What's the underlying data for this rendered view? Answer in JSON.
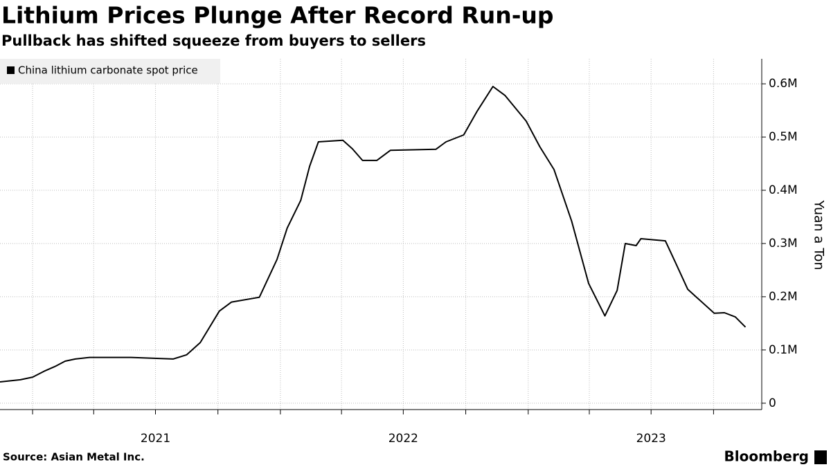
{
  "chart_data": {
    "type": "line",
    "title": "Lithium Prices Plunge After Record Run-up",
    "subtitle": "Pullback has shifted squeeze from buyers to sellers",
    "y_axis_label": "Yuan a Ton",
    "source": "Source: Asian Metal Inc.",
    "brand": "Bloomberg",
    "legend_position": "top-left",
    "grid": true,
    "x": [
      "2020-11-14",
      "2020-12-14",
      "2021-01-01",
      "2021-01-18",
      "2021-02-03",
      "2021-02-18",
      "2021-03-05",
      "2021-03-26",
      "2021-05-26",
      "2021-07-27",
      "2021-08-16",
      "2021-09-05",
      "2021-10-03",
      "2021-10-21",
      "2021-12-01",
      "2021-12-27",
      "2022-01-11",
      "2022-01-31",
      "2022-02-13",
      "2022-02-26",
      "2022-04-03",
      "2022-04-17",
      "2022-05-02",
      "2022-05-23",
      "2022-06-12",
      "2022-08-18",
      "2022-09-02",
      "2022-09-28",
      "2022-10-18",
      "2022-11-10",
      "2022-11-28",
      "2022-12-29",
      "2023-01-18",
      "2023-02-08",
      "2023-03-06",
      "2023-03-31",
      "2023-04-24",
      "2023-05-12",
      "2023-05-24",
      "2023-06-09",
      "2023-06-16",
      "2023-07-22",
      "2023-08-06",
      "2023-08-24",
      "2023-09-06",
      "2023-10-02",
      "2023-10-17",
      "2023-11-02",
      "2023-11-17"
    ],
    "series": [
      {
        "name": "China lithium carbonate spot price",
        "color": "#000000",
        "values": [
          40000,
          44000,
          49000,
          60000,
          69000,
          79000,
          83000,
          86000,
          86000,
          83000,
          91000,
          114000,
          173000,
          190000,
          199000,
          270000,
          329000,
          381000,
          445000,
          491000,
          494000,
          478000,
          456000,
          456000,
          475000,
          477000,
          491000,
          504000,
          549000,
          595000,
          578000,
          530000,
          482000,
          439000,
          342000,
          225000,
          164000,
          212000,
          300000,
          296000,
          309000,
          305000,
          264000,
          214000,
          199000,
          169000,
          170000,
          162000,
          143000
        ]
      }
    ],
    "xlim": [
      "2020-11-14",
      "2023-12-11"
    ],
    "xticks": [
      {
        "value": "2021-07-01",
        "label": "2021"
      },
      {
        "value": "2022-07-01",
        "label": "2022"
      },
      {
        "value": "2023-07-01",
        "label": "2023"
      }
    ],
    "x_gridlines": [
      "2021-01-01",
      "2021-04-01",
      "2021-07-01",
      "2021-10-01",
      "2022-01-01",
      "2022-04-01",
      "2022-07-01",
      "2022-10-01",
      "2023-01-01",
      "2023-04-01",
      "2023-07-01",
      "2023-10-01"
    ],
    "ylim": [
      -12000,
      647000
    ],
    "yticks": [
      0,
      {
        "value": 100000,
        "label": "0.1M"
      },
      {
        "value": 200000,
        "label": "0.2M"
      },
      {
        "value": 300000,
        "label": "0.3M"
      },
      {
        "value": 400000,
        "label": "0.4M"
      },
      {
        "value": 500000,
        "label": "0.5M"
      },
      {
        "value": 600000,
        "label": "0.6M"
      }
    ]
  }
}
